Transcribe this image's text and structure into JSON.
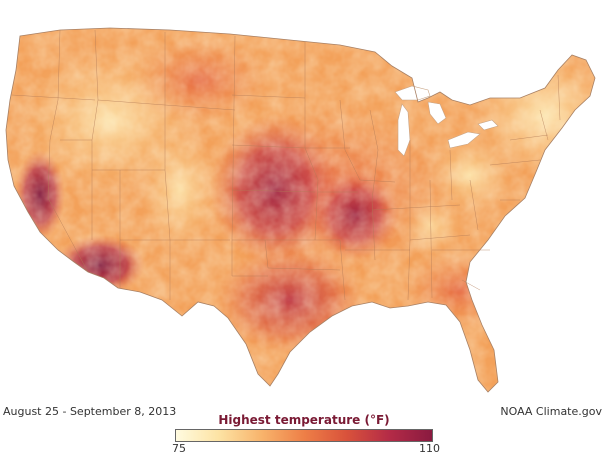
{
  "map": {
    "region": "Contiguous United States",
    "colors": {
      "low": "#fff7d0",
      "mid_low": "#fcd08b",
      "mid": "#f5a25a",
      "mid_high": "#e8673c",
      "high": "#b93049",
      "max": "#8e1a3f",
      "border_lines": "#b27a55"
    }
  },
  "footer": {
    "date_range": "August 25 - September 8, 2013",
    "credit": "NOAA Climate.gov"
  },
  "legend": {
    "title": "Highest temperature (°F)",
    "min": "75",
    "max": "110",
    "gradient": [
      "#fffbe0",
      "#fde3a4",
      "#f8b46c",
      "#ee7f47",
      "#d9523b",
      "#b42b47",
      "#8a1a40"
    ]
  }
}
